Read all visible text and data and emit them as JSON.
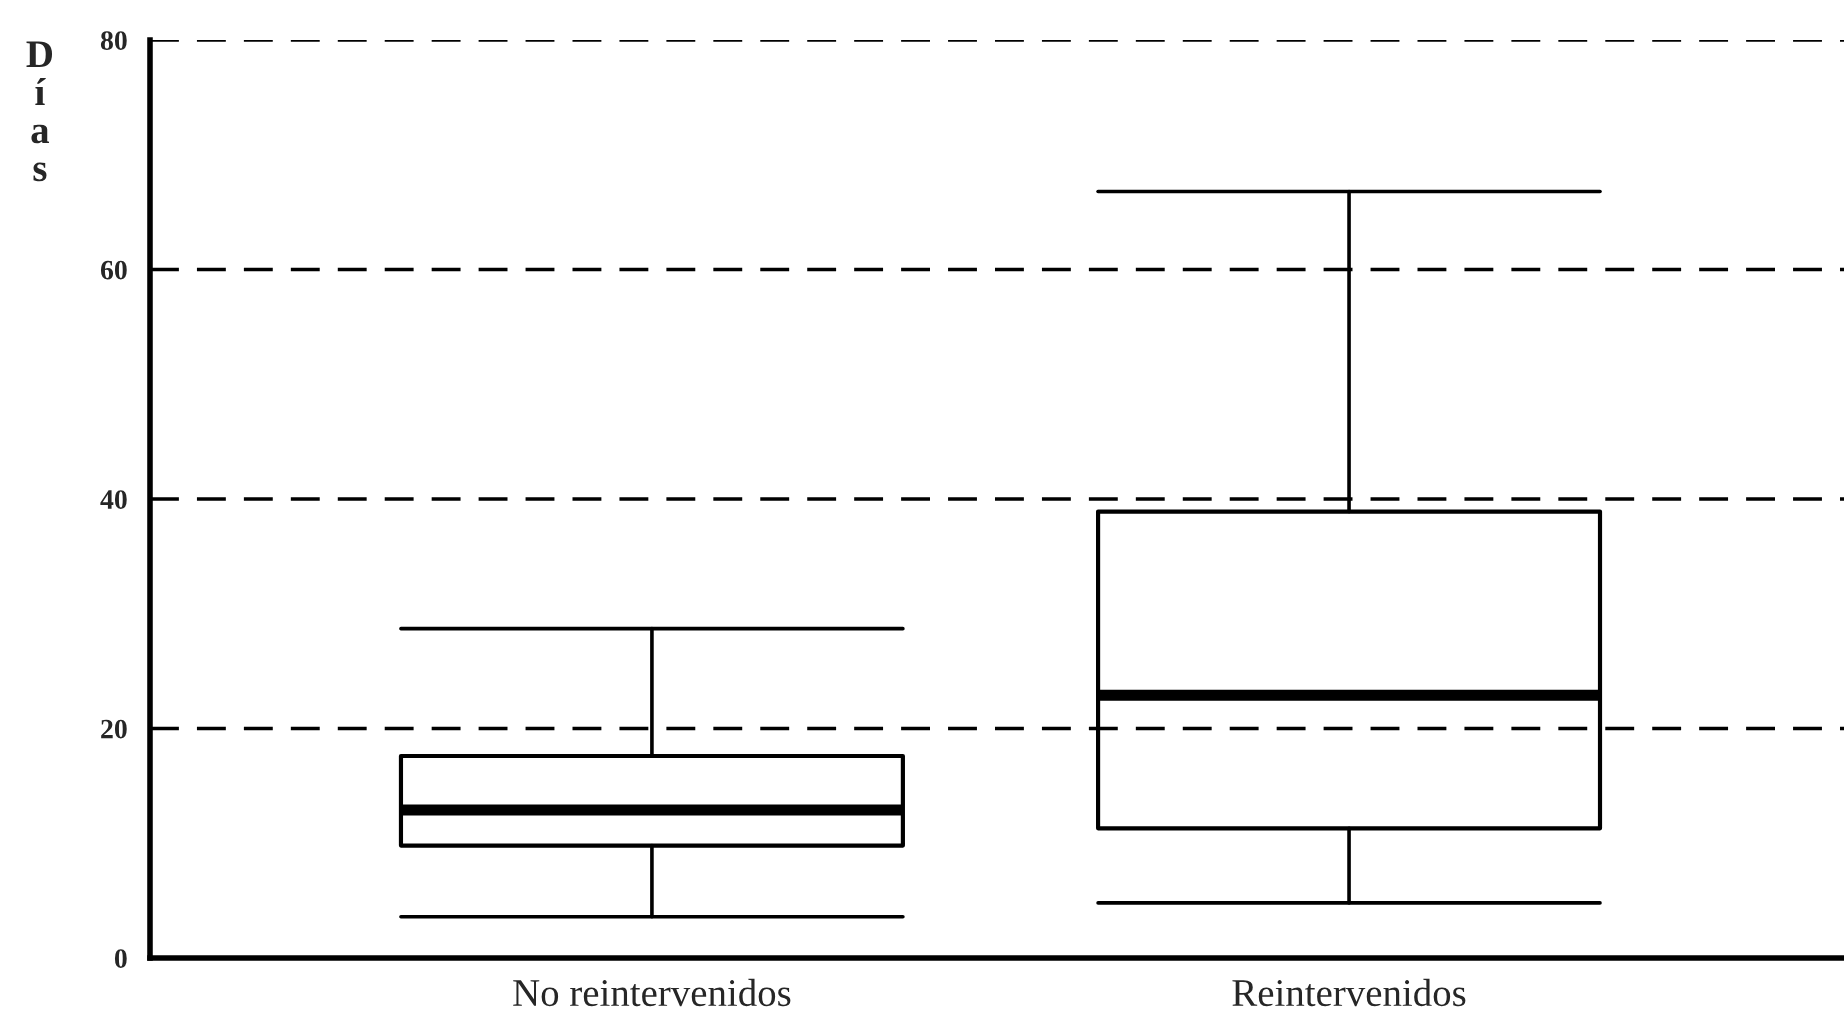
{
  "chart_data": {
    "type": "box",
    "ylabel": "Días",
    "categories": [
      "No reintervenidos",
      "Reintervenidos"
    ],
    "boxes": [
      {
        "low": 3.6,
        "q1": 9.8,
        "median": 12.9,
        "q3": 17.6,
        "high": 28.7
      },
      {
        "low": 4.8,
        "q1": 11.3,
        "median": 22.9,
        "q3": 38.9,
        "high": 66.8
      }
    ],
    "ylim": [
      0,
      80
    ],
    "yticks": [
      0,
      20,
      40,
      60,
      80
    ],
    "grid": "y",
    "line_style": "dashed"
  }
}
